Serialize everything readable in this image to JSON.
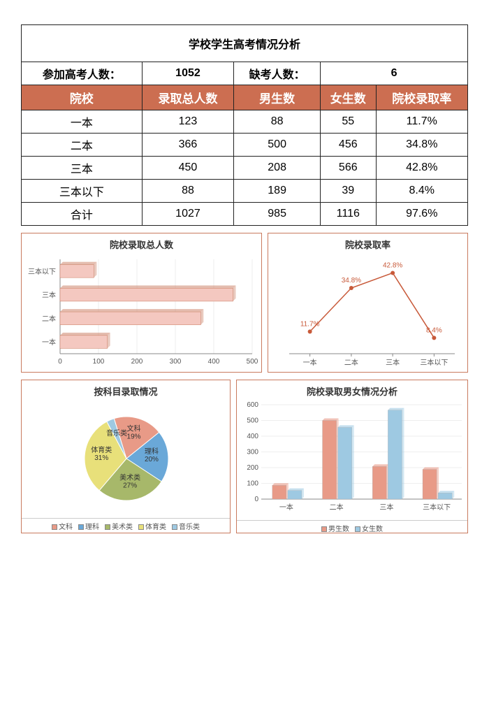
{
  "title": "学校学生高考情况分析",
  "summary": {
    "exam_count_label": "参加高考人数：",
    "exam_count": "1052",
    "absent_label": "缺考人数：",
    "absent_count": "6"
  },
  "table": {
    "header_bg": "#cc6e51",
    "headers": [
      "院校",
      "录取总人数",
      "男生数",
      "女生数",
      "院校录取率"
    ],
    "rows": [
      {
        "c0": "一本",
        "c1": "123",
        "c2": "88",
        "c3": "55",
        "c4": "11.7%"
      },
      {
        "c0": "二本",
        "c1": "366",
        "c2": "500",
        "c3": "456",
        "c4": "34.8%"
      },
      {
        "c0": "三本",
        "c1": "450",
        "c2": "208",
        "c3": "566",
        "c4": "42.8%"
      },
      {
        "c0": "三本以下",
        "c1": "88",
        "c2": "189",
        "c3": "39",
        "c4": "8.4%"
      },
      {
        "c0": "合计",
        "c1": "1027",
        "c2": "985",
        "c3": "1116",
        "c4": "97.6%"
      }
    ]
  },
  "bar_chart": {
    "title": "院校录取总人数",
    "categories": [
      "三本以下",
      "三本",
      "二本",
      "一本"
    ],
    "values": [
      88,
      450,
      366,
      123
    ],
    "xmax": 500,
    "xticks": [
      0,
      100,
      200,
      300,
      400,
      500
    ],
    "bar_fill": "#f4c8c0",
    "bar_stroke": "#c97a5e",
    "axis_color": "#888",
    "label_color": "#555",
    "label_fontsize": 10
  },
  "line_chart": {
    "title": "院校录取率",
    "categories": [
      "一本",
      "二本",
      "三本",
      "三本以下"
    ],
    "values": [
      11.7,
      34.8,
      42.8,
      8.4
    ],
    "labels": [
      "11.7%",
      "34.8%",
      "42.8%",
      "8.4%"
    ],
    "ymax": 50,
    "line_color": "#c85a3a",
    "marker_fill": "#c85a3a",
    "axis_color": "#888",
    "label_fontsize": 10
  },
  "pie_chart": {
    "title": "按科目录取情况",
    "slices": [
      {
        "name": "文科",
        "label": "文科\n19%",
        "value": 19,
        "color": "#e89a87"
      },
      {
        "name": "理科",
        "label": "理科\n20%",
        "value": 20,
        "color": "#6aa8d8"
      },
      {
        "name": "美术类",
        "label": "美术类\n27%",
        "value": 27,
        "color": "#a7b86a"
      },
      {
        "name": "体育类",
        "label": "体育类\n31%",
        "value": 31,
        "color": "#e8e07a"
      },
      {
        "name": "音乐类",
        "label": "音乐类",
        "value": 3,
        "color": "#9ec9e2"
      }
    ],
    "legend_items": [
      {
        "name": "文科",
        "color": "#e89a87"
      },
      {
        "name": "理科",
        "color": "#6aa8d8"
      },
      {
        "name": "美术类",
        "color": "#a7b86a"
      },
      {
        "name": "体育类",
        "color": "#e8e07a"
      },
      {
        "name": "音乐类",
        "color": "#9ec9e2"
      }
    ],
    "legend_prefix": "□"
  },
  "grouped_bar": {
    "title": "院校录取男女情况分析",
    "categories": [
      "一本",
      "二本",
      "三本",
      "三本以下"
    ],
    "series": [
      {
        "name": "男生数",
        "color": "#e89a87",
        "values": [
          88,
          500,
          208,
          189
        ]
      },
      {
        "name": "女生数",
        "color": "#9ec9e2",
        "values": [
          55,
          456,
          566,
          39
        ]
      }
    ],
    "ymax": 600,
    "yticks": [
      0,
      100,
      200,
      300,
      400,
      500,
      600
    ],
    "axis_color": "#888",
    "label_fontsize": 10
  }
}
